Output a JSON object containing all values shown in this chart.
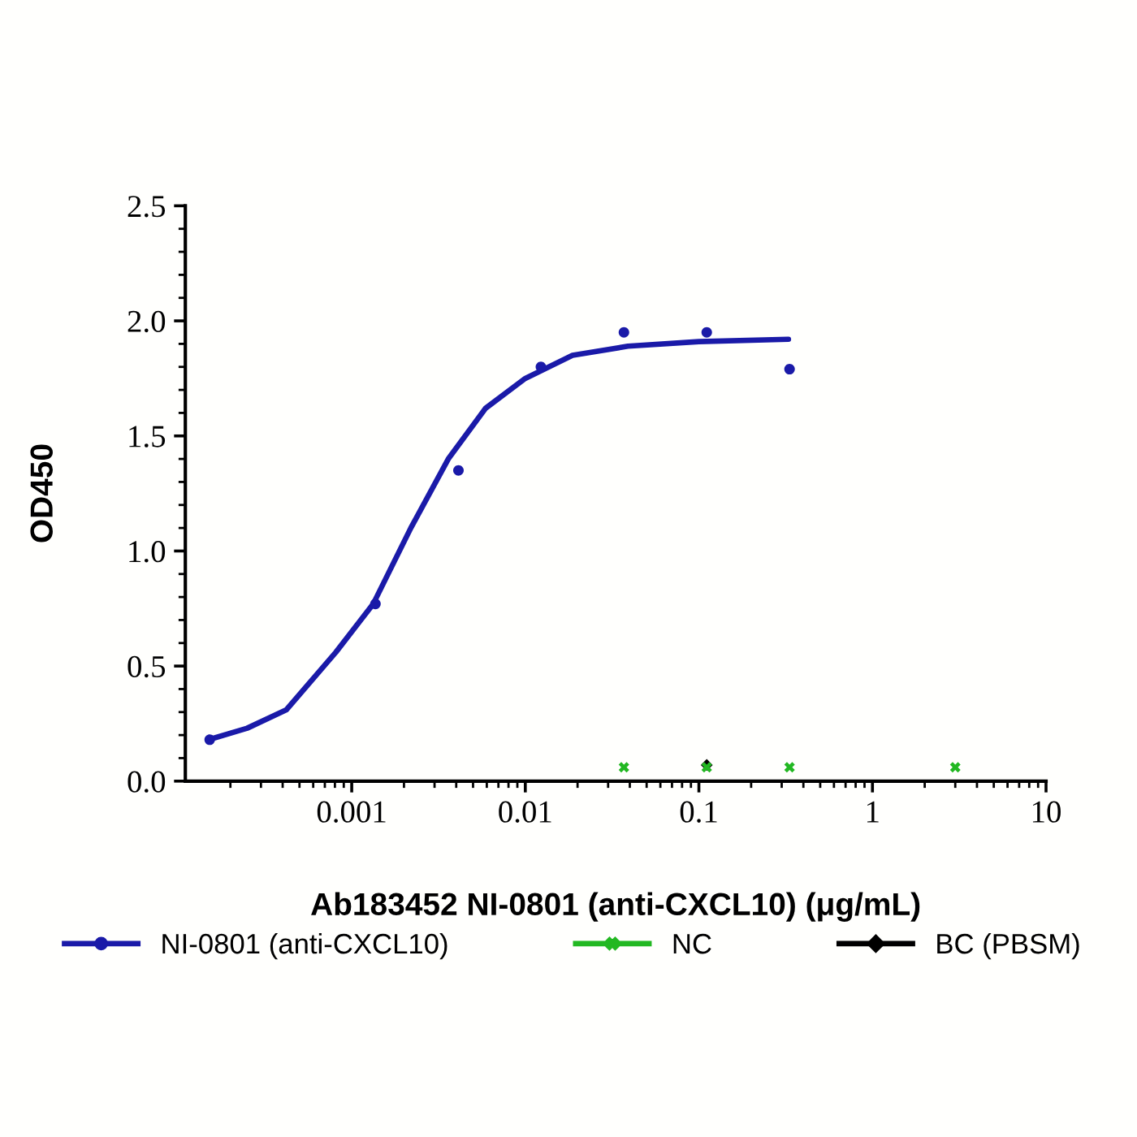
{
  "chart_data": {
    "type": "scatter",
    "xlabel": "Ab183452 NI-0801 (anti-CXCL10) (μg/mL)",
    "ylabel": "OD450",
    "log": "x",
    "xlim": [
      0.00011,
      10
    ],
    "xticks": [
      0.001,
      0.01,
      0.1,
      1,
      10
    ],
    "ylim": [
      0,
      2.5
    ],
    "yticks": [
      {
        "value": 0,
        "label": "0.0"
      },
      0.5,
      {
        "value": 1,
        "label": "1.0"
      },
      1.5,
      {
        "value": 2,
        "label": "2.0"
      },
      2.5
    ],
    "grid": false,
    "legend": "bottom",
    "series": [
      {
        "name": "NI-0801 (anti-CXCL10)",
        "color": "#1a1aa8",
        "marker": "circle",
        "x": [
          0.000152,
          0.00137,
          0.00412,
          0.0123,
          0.037,
          0.111,
          0.333
        ],
        "values": [
          0.18,
          0.77,
          1.35,
          1.8,
          1.95,
          1.95,
          1.79
        ]
      },
      {
        "type": "line",
        "color": "#1a1aa8",
        "marker": "none",
        "x": [
          0.00015,
          0.00025,
          0.00042,
          0.00081,
          0.00133,
          0.00219,
          0.0036,
          0.0059,
          0.01,
          0.0187,
          0.039,
          0.1,
          0.328
        ],
        "values": [
          0.18,
          0.23,
          0.31,
          0.56,
          0.77,
          1.1,
          1.4,
          1.62,
          1.75,
          1.85,
          1.89,
          1.91,
          1.92
        ]
      },
      {
        "name": "NC",
        "color": "#22b822",
        "marker": "cross",
        "x": [
          0.037,
          0.111,
          0.333,
          3.0
        ],
        "values": [
          0.06,
          0.06,
          0.06,
          0.06
        ]
      },
      {
        "name": "BC (PBSM)",
        "color": "#000000",
        "marker": "diamond",
        "x": [
          0.111
        ],
        "values": [
          0.07
        ]
      }
    ]
  }
}
